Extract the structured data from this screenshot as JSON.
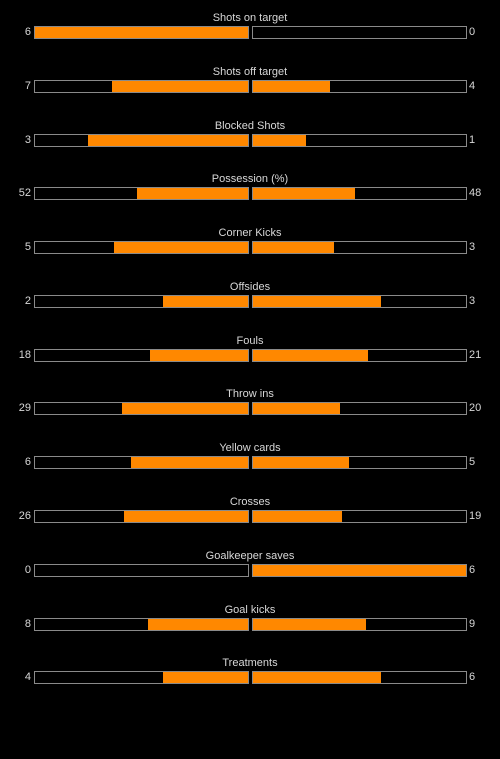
{
  "colors": {
    "background": "#000000",
    "bar_fill": "#ff8800",
    "bar_border": "#8a8a8a",
    "text": "#d8d8d8"
  },
  "stats": [
    {
      "label": "Shots on target",
      "home": "6",
      "away": "0",
      "home_fill": 1.0,
      "away_fill": 0.0
    },
    {
      "label": "Shots off target",
      "home": "7",
      "away": "4",
      "home_fill": 0.64,
      "away_fill": 0.36
    },
    {
      "label": "Blocked Shots",
      "home": "3",
      "away": "1",
      "home_fill": 0.75,
      "away_fill": 0.25
    },
    {
      "label": "Possession (%)",
      "home": "52",
      "away": "48",
      "home_fill": 0.52,
      "away_fill": 0.48
    },
    {
      "label": "Corner Kicks",
      "home": "5",
      "away": "3",
      "home_fill": 0.63,
      "away_fill": 0.38
    },
    {
      "label": "Offsides",
      "home": "2",
      "away": "3",
      "home_fill": 0.4,
      "away_fill": 0.6
    },
    {
      "label": "Fouls",
      "home": "18",
      "away": "21",
      "home_fill": 0.46,
      "away_fill": 0.54
    },
    {
      "label": "Throw ins",
      "home": "29",
      "away": "20",
      "home_fill": 0.59,
      "away_fill": 0.41
    },
    {
      "label": "Yellow cards",
      "home": "6",
      "away": "5",
      "home_fill": 0.55,
      "away_fill": 0.45
    },
    {
      "label": "Crosses",
      "home": "26",
      "away": "19",
      "home_fill": 0.58,
      "away_fill": 0.42
    },
    {
      "label": "Goalkeeper saves",
      "home": "0",
      "away": "6",
      "home_fill": 0.0,
      "away_fill": 1.0
    },
    {
      "label": "Goal kicks",
      "home": "8",
      "away": "9",
      "home_fill": 0.47,
      "away_fill": 0.53
    },
    {
      "label": "Treatments",
      "home": "4",
      "away": "6",
      "home_fill": 0.4,
      "away_fill": 0.6
    }
  ]
}
